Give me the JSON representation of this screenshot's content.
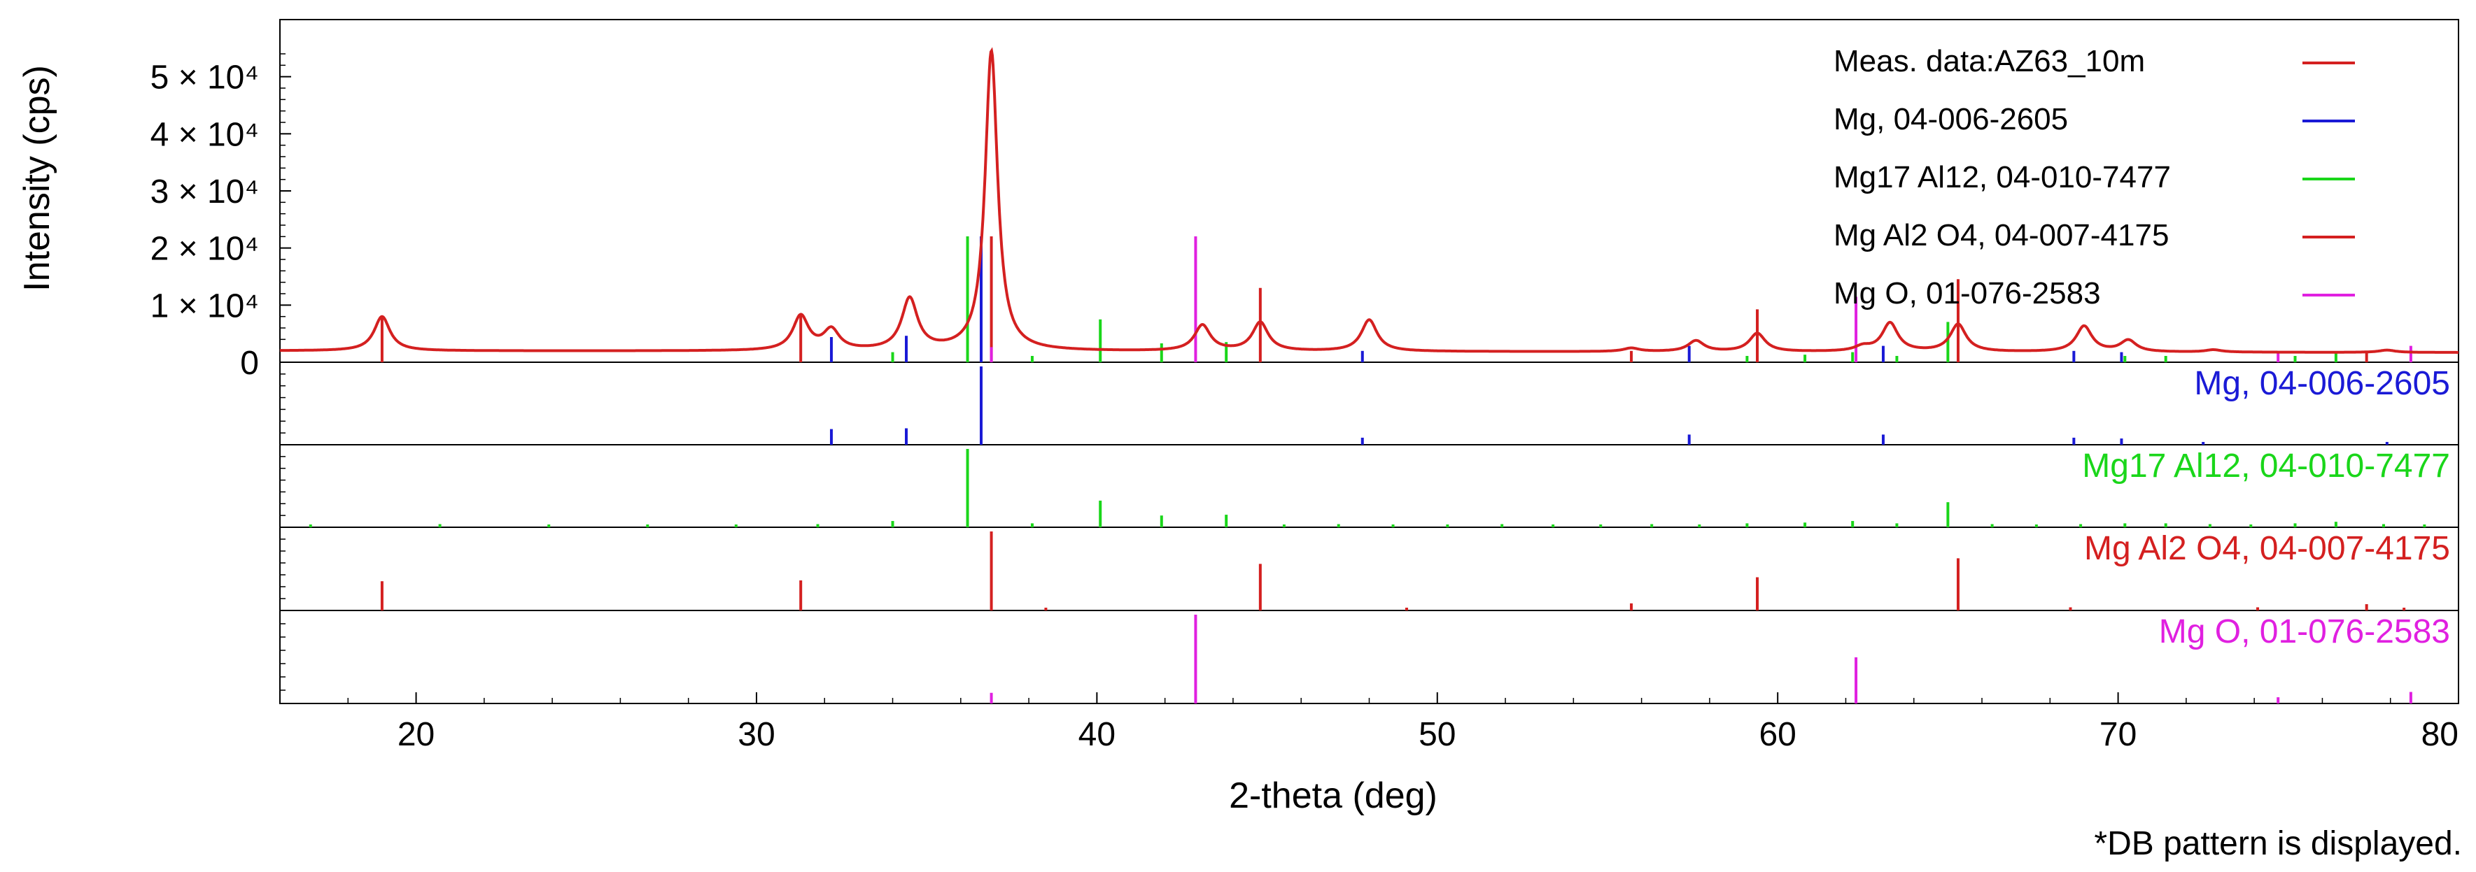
{
  "chart_data": {
    "type": "line",
    "xlabel": "2-theta (deg)",
    "ylabel": "Intensity (cps)",
    "xlim": [
      16,
      80
    ],
    "ylim": [
      0,
      60000
    ],
    "x_ticks": [
      20,
      30,
      40,
      50,
      60,
      70,
      80
    ],
    "y_ticks": [
      {
        "value": 0,
        "label": "0"
      },
      {
        "value": 10000,
        "label": "1 × 10⁴"
      },
      {
        "value": 20000,
        "label": "2 × 10⁴"
      },
      {
        "value": 30000,
        "label": "3 × 10⁴"
      },
      {
        "value": 40000,
        "label": "4 × 10⁴"
      },
      {
        "value": 50000,
        "label": "5 × 10⁴"
      }
    ],
    "legend_position": "top-right",
    "legend": [
      {
        "label": "Meas. data:AZ63_10m",
        "color": "#d42020"
      },
      {
        "label": "Mg, 04-006-2605",
        "color": "#1a1ad6"
      },
      {
        "label": "Mg17 Al12, 04-010-7477",
        "color": "#1ad61a"
      },
      {
        "label": "Mg Al2 O4, 04-007-4175",
        "color": "#d42020"
      },
      {
        "label": "Mg O, 01-076-2583",
        "color": "#e020e0"
      }
    ],
    "measured": {
      "name": "Meas. data:AZ63_10m",
      "color": "#d42020",
      "baseline": 2000,
      "peaks": [
        {
          "x": 19.0,
          "y": 8000
        },
        {
          "x": 31.3,
          "y": 8000
        },
        {
          "x": 32.2,
          "y": 5500
        },
        {
          "x": 34.5,
          "y": 11000
        },
        {
          "x": 36.9,
          "y": 54500
        },
        {
          "x": 43.1,
          "y": 6500
        },
        {
          "x": 44.8,
          "y": 7000
        },
        {
          "x": 48.0,
          "y": 7500
        },
        {
          "x": 55.7,
          "y": 2600
        },
        {
          "x": 57.6,
          "y": 3900
        },
        {
          "x": 59.4,
          "y": 5200
        },
        {
          "x": 62.5,
          "y": 2800
        },
        {
          "x": 63.3,
          "y": 7000
        },
        {
          "x": 65.3,
          "y": 6800
        },
        {
          "x": 69.0,
          "y": 6500
        },
        {
          "x": 70.3,
          "y": 4000
        },
        {
          "x": 72.8,
          "y": 2400
        },
        {
          "x": 77.9,
          "y": 2400
        }
      ]
    },
    "reference_patterns": [
      {
        "name": "Mg, 04-006-2605",
        "color": "#1a1ad6",
        "lines": [
          {
            "x": 32.2,
            "i": 20
          },
          {
            "x": 34.4,
            "i": 21
          },
          {
            "x": 36.6,
            "i": 100
          },
          {
            "x": 47.8,
            "i": 9
          },
          {
            "x": 57.4,
            "i": 13
          },
          {
            "x": 63.1,
            "i": 13
          },
          {
            "x": 68.7,
            "i": 9
          },
          {
            "x": 70.1,
            "i": 8
          },
          {
            "x": 72.5,
            "i": 2
          },
          {
            "x": 77.9,
            "i": 2
          }
        ]
      },
      {
        "name": "Mg17 Al12, 04-010-7477",
        "color": "#1ad61a",
        "lines": [
          {
            "x": 16.9,
            "i": 2
          },
          {
            "x": 20.7,
            "i": 4
          },
          {
            "x": 23.9,
            "i": 3
          },
          {
            "x": 26.8,
            "i": 3
          },
          {
            "x": 29.4,
            "i": 2
          },
          {
            "x": 31.8,
            "i": 4
          },
          {
            "x": 34.0,
            "i": 8
          },
          {
            "x": 36.2,
            "i": 100
          },
          {
            "x": 38.1,
            "i": 5
          },
          {
            "x": 40.1,
            "i": 34
          },
          {
            "x": 41.9,
            "i": 15
          },
          {
            "x": 43.8,
            "i": 16
          },
          {
            "x": 45.5,
            "i": 3
          },
          {
            "x": 47.1,
            "i": 4
          },
          {
            "x": 48.7,
            "i": 3
          },
          {
            "x": 50.3,
            "i": 3
          },
          {
            "x": 51.9,
            "i": 4
          },
          {
            "x": 53.4,
            "i": 3
          },
          {
            "x": 54.8,
            "i": 3
          },
          {
            "x": 56.3,
            "i": 4
          },
          {
            "x": 57.7,
            "i": 3
          },
          {
            "x": 59.1,
            "i": 5
          },
          {
            "x": 60.8,
            "i": 6
          },
          {
            "x": 62.2,
            "i": 8
          },
          {
            "x": 63.5,
            "i": 5
          },
          {
            "x": 65.0,
            "i": 32
          },
          {
            "x": 66.3,
            "i": 4
          },
          {
            "x": 67.6,
            "i": 3
          },
          {
            "x": 68.9,
            "i": 4
          },
          {
            "x": 70.2,
            "i": 5
          },
          {
            "x": 71.4,
            "i": 5
          },
          {
            "x": 72.7,
            "i": 4
          },
          {
            "x": 73.9,
            "i": 3
          },
          {
            "x": 75.2,
            "i": 5
          },
          {
            "x": 76.4,
            "i": 7
          },
          {
            "x": 77.8,
            "i": 4
          },
          {
            "x": 79.0,
            "i": 3
          }
        ]
      },
      {
        "name": "Mg Al2 O4, 04-007-4175",
        "color": "#d42020",
        "lines": [
          {
            "x": 19.0,
            "i": 37
          },
          {
            "x": 31.3,
            "i": 38
          },
          {
            "x": 36.9,
            "i": 100
          },
          {
            "x": 38.5,
            "i": 3
          },
          {
            "x": 44.8,
            "i": 59
          },
          {
            "x": 49.1,
            "i": 3
          },
          {
            "x": 55.7,
            "i": 9
          },
          {
            "x": 59.4,
            "i": 42
          },
          {
            "x": 65.3,
            "i": 66
          },
          {
            "x": 68.6,
            "i": 4
          },
          {
            "x": 74.1,
            "i": 4
          },
          {
            "x": 77.3,
            "i": 8
          },
          {
            "x": 78.4,
            "i": 3
          }
        ]
      },
      {
        "name": "Mg O, 01-076-2583",
        "color": "#e020e0",
        "lines": [
          {
            "x": 36.9,
            "i": 12
          },
          {
            "x": 42.9,
            "i": 100
          },
          {
            "x": 62.3,
            "i": 52
          },
          {
            "x": 74.7,
            "i": 7
          },
          {
            "x": 78.6,
            "i": 13
          }
        ]
      }
    ]
  },
  "footnote": "*DB pattern is displayed."
}
